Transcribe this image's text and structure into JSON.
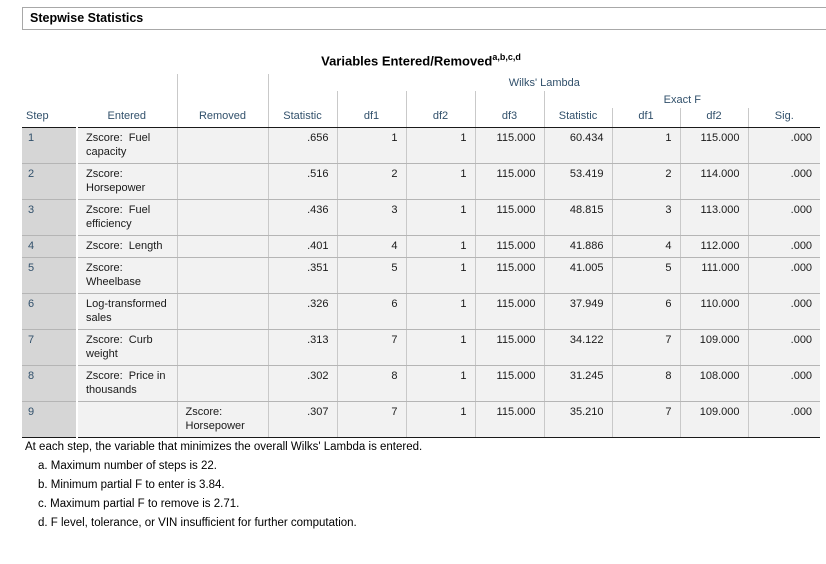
{
  "section": {
    "title": "Stepwise Statistics"
  },
  "table": {
    "title": "Variables Entered/Removed",
    "title_superscript": "a,b,c,d",
    "spanners": {
      "wilks_lambda": "Wilks' Lambda",
      "exact_f": "Exact F"
    },
    "columns": {
      "step": "Step",
      "entered": "Entered",
      "removed": "Removed",
      "wl_statistic": "Statistic",
      "wl_df1": "df1",
      "wl_df2": "df2",
      "wl_df3": "df3",
      "ef_statistic": "Statistic",
      "ef_df1": "df1",
      "ef_df2": "df2",
      "sig": "Sig."
    },
    "rows": [
      {
        "step": "1",
        "entered": "Zscore:  Fuel capacity",
        "removed": "",
        "wl_statistic": ".656",
        "wl_df1": "1",
        "wl_df2": "1",
        "wl_df3": "115.000",
        "ef_statistic": "60.434",
        "ef_df1": "1",
        "ef_df2": "115.000",
        "sig": ".000"
      },
      {
        "step": "2",
        "entered": "Zscore:  Horsepower",
        "removed": "",
        "wl_statistic": ".516",
        "wl_df1": "2",
        "wl_df2": "1",
        "wl_df3": "115.000",
        "ef_statistic": "53.419",
        "ef_df1": "2",
        "ef_df2": "114.000",
        "sig": ".000"
      },
      {
        "step": "3",
        "entered": "Zscore:  Fuel efficiency",
        "removed": "",
        "wl_statistic": ".436",
        "wl_df1": "3",
        "wl_df2": "1",
        "wl_df3": "115.000",
        "ef_statistic": "48.815",
        "ef_df1": "3",
        "ef_df2": "113.000",
        "sig": ".000"
      },
      {
        "step": "4",
        "entered": "Zscore:  Length",
        "removed": "",
        "wl_statistic": ".401",
        "wl_df1": "4",
        "wl_df2": "1",
        "wl_df3": "115.000",
        "ef_statistic": "41.886",
        "ef_df1": "4",
        "ef_df2": "112.000",
        "sig": ".000"
      },
      {
        "step": "5",
        "entered": "Zscore:  Wheelbase",
        "removed": "",
        "wl_statistic": ".351",
        "wl_df1": "5",
        "wl_df2": "1",
        "wl_df3": "115.000",
        "ef_statistic": "41.005",
        "ef_df1": "5",
        "ef_df2": "111.000",
        "sig": ".000"
      },
      {
        "step": "6",
        "entered": "Log-transformed sales",
        "removed": "",
        "wl_statistic": ".326",
        "wl_df1": "6",
        "wl_df2": "1",
        "wl_df3": "115.000",
        "ef_statistic": "37.949",
        "ef_df1": "6",
        "ef_df2": "110.000",
        "sig": ".000"
      },
      {
        "step": "7",
        "entered": "Zscore:  Curb weight",
        "removed": "",
        "wl_statistic": ".313",
        "wl_df1": "7",
        "wl_df2": "1",
        "wl_df3": "115.000",
        "ef_statistic": "34.122",
        "ef_df1": "7",
        "ef_df2": "109.000",
        "sig": ".000"
      },
      {
        "step": "8",
        "entered": "Zscore:  Price in thousands",
        "removed": "",
        "wl_statistic": ".302",
        "wl_df1": "8",
        "wl_df2": "1",
        "wl_df3": "115.000",
        "ef_statistic": "31.245",
        "ef_df1": "8",
        "ef_df2": "108.000",
        "sig": ".000"
      },
      {
        "step": "9",
        "entered": "",
        "removed": "Zscore:  Horsepower",
        "wl_statistic": ".307",
        "wl_df1": "7",
        "wl_df2": "1",
        "wl_df3": "115.000",
        "ef_statistic": "35.210",
        "ef_df1": "7",
        "ef_df2": "109.000",
        "sig": ".000"
      }
    ]
  },
  "footnotes": {
    "caption": "At each step, the variable that minimizes the overall Wilks' Lambda is entered.",
    "items": [
      "a. Maximum number of steps is 22.",
      "b. Minimum partial F to enter is 3.84.",
      "c. Maximum partial F to remove is 2.71.",
      "d. F level, tolerance, or VIN insufficient for further computation."
    ]
  },
  "colors": {
    "header_text": "#31506b",
    "step_cell_bg": "#d6d6d6",
    "data_cell_bg": "#f2f2f2",
    "grid_line": "#b5b5b5",
    "strong_line": "#1a1a1a"
  }
}
